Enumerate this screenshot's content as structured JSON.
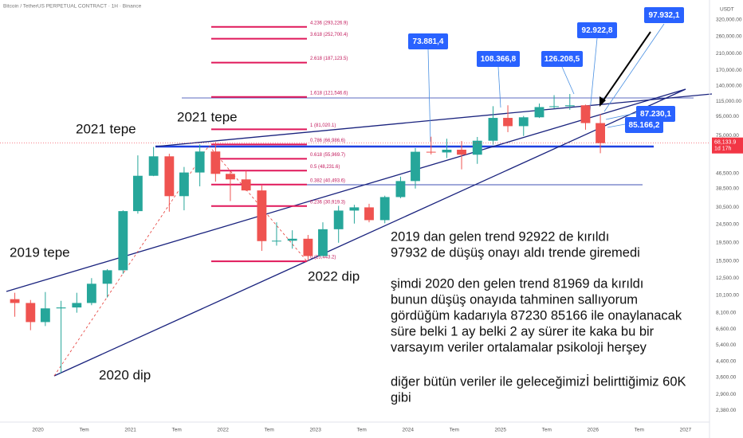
{
  "chart_data": {
    "type": "candlestick",
    "title": "Bitcoin / TetherUS PERPETUAL CONTRACT · 1H · Binance",
    "y_axis_label": "USDT",
    "log_scale": true,
    "grid": false,
    "up_color": "#26a69a",
    "down_color": "#ef5350",
    "x": [
      2019.75,
      2019.92,
      2020.08,
      2020.25,
      2020.42,
      2020.58,
      2020.75,
      2020.92,
      2021.08,
      2021.25,
      2021.42,
      2021.58,
      2021.75,
      2021.92,
      2022.08,
      2022.25,
      2022.42,
      2022.58,
      2022.75,
      2022.92,
      2023.08,
      2023.25,
      2023.42,
      2023.58,
      2023.75,
      2023.92,
      2024.08,
      2024.25,
      2024.42,
      2024.58,
      2024.75,
      2024.92,
      2025.08,
      2025.25,
      2025.42,
      2025.58,
      2025.75,
      2025.92,
      2026.08
    ],
    "open": [
      9600,
      9150,
      7200,
      8550,
      8650,
      9150,
      11650,
      13800,
      29000,
      45200,
      57700,
      35000,
      47100,
      61300,
      46300,
      43200,
      37600,
      19900,
      20000,
      20500,
      16500,
      23100,
      29200,
      30400,
      25900,
      34600,
      42300,
      61100,
      60600,
      62700,
      58900,
      70200,
      93500,
      84300,
      94200,
      107100,
      108200,
      109500,
      87600
    ],
    "high": [
      10400,
      9500,
      10500,
      9400,
      10400,
      12500,
      14000,
      29300,
      58400,
      64900,
      59600,
      50500,
      67000,
      69000,
      48000,
      48200,
      40000,
      25200,
      22800,
      21500,
      25200,
      31000,
      31400,
      31800,
      35200,
      44700,
      64000,
      73800,
      72000,
      70000,
      73600,
      108300,
      109500,
      95800,
      112000,
      124400,
      126200,
      110500,
      97900
    ],
    "low": [
      7700,
      6500,
      6850,
      3800,
      8100,
      8900,
      9800,
      13200,
      28100,
      45000,
      28800,
      29300,
      39600,
      42000,
      32900,
      37400,
      17600,
      18800,
      18100,
      15500,
      16500,
      19500,
      24800,
      25200,
      24900,
      34100,
      38500,
      59100,
      56500,
      49000,
      52500,
      66800,
      78200,
      74500,
      93400,
      105300,
      103500,
      80600,
      60000
    ],
    "close": [
      9150,
      7200,
      8550,
      8650,
      9150,
      11650,
      13800,
      29000,
      45200,
      57700,
      35000,
      47100,
      61300,
      46300,
      43200,
      37600,
      19900,
      20000,
      20500,
      16500,
      23100,
      29200,
      30400,
      25900,
      34600,
      42300,
      61100,
      60600,
      62700,
      58900,
      70200,
      93500,
      84300,
      94200,
      107100,
      108200,
      109500,
      87600,
      68133.9
    ],
    "xlim": [
      2019.59,
      2027.26
    ],
    "xticks": [
      2020,
      {
        "value": 2020.5,
        "label": "Tem"
      },
      2021,
      {
        "value": 2021.5,
        "label": "Tem"
      },
      2022,
      {
        "value": 2022.5,
        "label": "Tem"
      },
      2023,
      {
        "value": 2023.5,
        "label": "Tem"
      },
      2024,
      {
        "value": 2024.5,
        "label": "Tem"
      },
      2025,
      {
        "value": 2025.5,
        "label": "Tem"
      },
      2026,
      {
        "value": 2026.5,
        "label": "Tem"
      },
      2027
    ],
    "ylim": [
      2051,
      410900
    ],
    "yticks": [
      {
        "value": 320000,
        "label": "320,000.00"
      },
      {
        "value": 260000,
        "label": "260,000.00"
      },
      {
        "value": 210000,
        "label": "210,000.00"
      },
      {
        "value": 170000,
        "label": "170,000.00"
      },
      {
        "value": 140000,
        "label": "140,000.00"
      },
      {
        "value": 115000,
        "label": "115,000.00"
      },
      {
        "value": 95000,
        "label": "95,000.00"
      },
      {
        "value": 75000,
        "label": "75,000.00"
      },
      {
        "value": 46500,
        "label": "46,500.00"
      },
      {
        "value": 38500,
        "label": "38,500.00"
      },
      {
        "value": 30500,
        "label": "30,500.00"
      },
      {
        "value": 24500,
        "label": "24,500.00"
      },
      {
        "value": 19500,
        "label": "19,500.00"
      },
      {
        "value": 15500,
        "label": "15,500.00"
      },
      {
        "value": 12500,
        "label": "12,500.00"
      },
      {
        "value": 10100,
        "label": "10,100.00"
      },
      {
        "value": 8100,
        "label": "8,100.00"
      },
      {
        "value": 6600,
        "label": "6,600.00"
      },
      {
        "value": 5400,
        "label": "5,400.00"
      },
      {
        "value": 4400,
        "label": "4,400.00"
      },
      {
        "value": 3600,
        "label": "3,600.00"
      },
      {
        "value": 2900,
        "label": "2,900.00"
      },
      {
        "value": 2380,
        "label": "2,380.00"
      }
    ],
    "fib_color": "#e0185a",
    "fib_levels": [
      {
        "value": 293226.9,
        "label": "4.236 (293,226.9)"
      },
      {
        "value": 252700.4,
        "label": "3.618 (252,700.4)"
      },
      {
        "value": 187123.5,
        "label": "2.618 (187,123.5)"
      },
      {
        "value": 121546.6,
        "label": "1.618 (121,546.6)"
      },
      {
        "value": 81020.1,
        "label": "1 (81,020.1)"
      },
      {
        "value": 66986.6,
        "label": "0.786 (66,986.6)"
      },
      {
        "value": 55969.7,
        "label": "0.618 (55,969.7)"
      },
      {
        "value": 48231.6,
        "label": "0.5 (48,231.6)"
      },
      {
        "value": 40493.6,
        "label": "0.382 (40,493.6)"
      },
      {
        "value": 30919.3,
        "label": "0.236 (30,919.3)"
      },
      {
        "value": 15443.2,
        "label": "0 (15,443.2)"
      }
    ],
    "last_price": {
      "value": 68133.9,
      "label": "68,133.9"
    },
    "countdown": "1d 17h",
    "callouts": [
      "73.881,4",
      "108.366,8",
      "126.208,5",
      "92.922,8",
      "97.932,1",
      "87.230,1",
      "85.166,2"
    ],
    "notes": [
      "2021 tepe",
      "2021 tepe",
      "2019 tepe",
      "2020 dip",
      "2022 dip"
    ],
    "commentary": [
      "2019 dan gelen trend 92922 de kırıldı",
      "97932 de düşüş onayı aldı trende giremedi",
      "şimdi 2020 den gelen trend 81969 da kırıldı",
      "bunun düşüş onayıda tahminen sallıyorum",
      "gördüğüm kadarıyla 87230 85166 ile onaylanacak",
      "süre belki 1 ay belki 2 ay sürer ite kaka  bu bir",
      "varsayım veriler ortalamalar psikoloji herşey",
      "diğer bütün veriler ile geleceğimizİ belirttiğimiz 60K",
      "gibi"
    ]
  }
}
